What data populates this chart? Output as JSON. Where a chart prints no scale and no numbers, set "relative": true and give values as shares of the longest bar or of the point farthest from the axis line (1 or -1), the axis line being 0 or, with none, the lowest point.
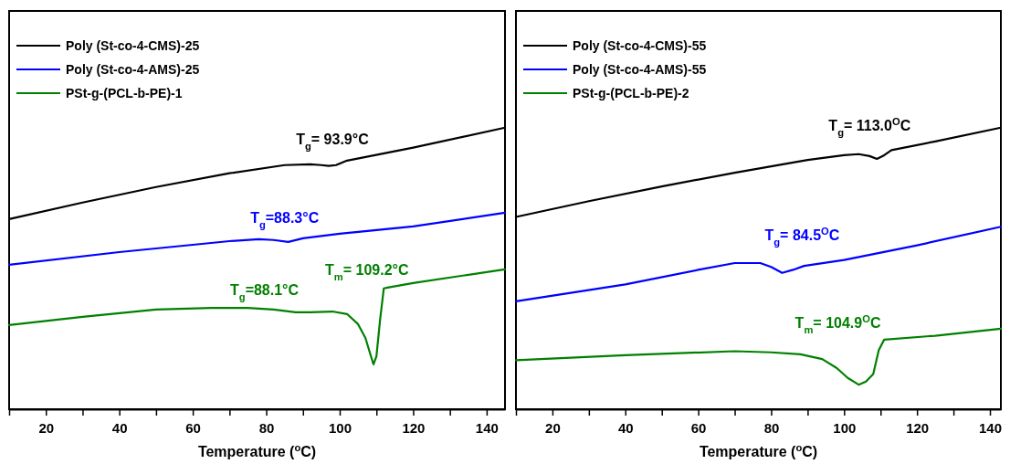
{
  "chart_data": [
    {
      "type": "line",
      "relative": true,
      "xlabel": "Temperature ($^{o}$C)",
      "xlim": [
        10,
        145
      ],
      "xticks": [
        {
          "value": 10,
          "label": null
        },
        20,
        {
          "value": 30,
          "label": null
        },
        40,
        {
          "value": 50,
          "label": null
        },
        60,
        {
          "value": 70,
          "label": null
        },
        80,
        {
          "value": 90,
          "label": null
        },
        100,
        {
          "value": 110,
          "label": null
        },
        120,
        {
          "value": 130,
          "label": null
        },
        140
      ],
      "tick_labels": "x",
      "legend": "top left",
      "grid": false,
      "line_style": "solid",
      "series": [
        {
          "name": "Poly (St-co-4-CMS)-25",
          "color": "#000000",
          "x": [
            10,
            30,
            50,
            70,
            85,
            92,
            95,
            97,
            99,
            102,
            120,
            145
          ],
          "values": [
            0.675,
            0.734,
            0.789,
            0.838,
            0.867,
            0.87,
            0.867,
            0.864,
            0.867,
            0.883,
            0.929,
            1
          ]
        },
        {
          "name": "Poly (St-co-4-AMS)-25",
          "color": "#0000ff",
          "x": [
            10,
            40,
            70,
            78,
            82,
            86,
            90,
            100,
            120,
            145
          ],
          "values": [
            0.513,
            0.558,
            0.597,
            0.604,
            0.601,
            0.594,
            0.607,
            0.623,
            0.649,
            0.698
          ]
        },
        {
          "name": "PSt-g-(PCL-b-PE)-1",
          "color": "#008000",
          "x": [
            10,
            30,
            50,
            65,
            75,
            82,
            88,
            92,
            98,
            102,
            105,
            107,
            108.5,
            109.2,
            110,
            111,
            112,
            113,
            120,
            145
          ],
          "values": [
            0.299,
            0.328,
            0.354,
            0.36,
            0.36,
            0.354,
            0.344,
            0.344,
            0.347,
            0.338,
            0.302,
            0.253,
            0.188,
            0.159,
            0.188,
            0.318,
            0.429,
            0.432,
            0.448,
            0.497
          ]
        }
      ],
      "annotations": [
        "T$_{g}$= 93.9°C",
        "T$_{g}$=88.3°C",
        "T$_{g}$=88.1°C",
        "T$_{m}$= 109.2°C"
      ]
    },
    {
      "type": "line",
      "relative": true,
      "xlabel": "Temperature ($^{o}$C)",
      "xlim": [
        10,
        143
      ],
      "xticks": [
        {
          "value": 10,
          "label": null
        },
        20,
        {
          "value": 30,
          "label": null
        },
        40,
        {
          "value": 50,
          "label": null
        },
        60,
        {
          "value": 70,
          "label": null
        },
        80,
        {
          "value": 90,
          "label": null
        },
        100,
        {
          "value": 110,
          "label": null
        },
        120,
        {
          "value": 130,
          "label": null
        },
        140
      ],
      "tick_labels": "x",
      "legend": "top left",
      "grid": false,
      "line_style": "solid",
      "series": [
        {
          "name": "Poly (St-co-4-CMS)-55",
          "color": "#000000",
          "x": [
            10,
            30,
            50,
            70,
            90,
            100,
            104,
            107,
            109,
            111,
            113,
            125,
            143
          ],
          "values": [
            0.683,
            0.739,
            0.791,
            0.84,
            0.885,
            0.902,
            0.906,
            0.899,
            0.889,
            0.902,
            0.92,
            0.951,
            1
          ]
        },
        {
          "name": "Poly (St-co-4-AMS)-55",
          "color": "#0000ff",
          "x": [
            10,
            40,
            60,
            70,
            77,
            80,
            83,
            86,
            89,
            100,
            120,
            143
          ],
          "values": [
            0.383,
            0.443,
            0.495,
            0.519,
            0.519,
            0.505,
            0.484,
            0.495,
            0.509,
            0.53,
            0.582,
            0.648
          ]
        },
        {
          "name": "PSt-g-(PCL-b-PE)-2",
          "color": "#008000",
          "x": [
            10,
            40,
            70,
            80,
            88,
            94,
            98,
            101,
            104,
            106,
            108,
            109.5,
            111,
            125,
            143
          ],
          "values": [
            0.174,
            0.192,
            0.206,
            0.202,
            0.195,
            0.178,
            0.146,
            0.111,
            0.087,
            0.098,
            0.125,
            0.209,
            0.247,
            0.261,
            0.286
          ]
        }
      ],
      "annotations": [
        "T$_{g}$= 113.0$^{O}$C",
        "T$_{g}$= 84.5$^{O}$C",
        "T$_{m}$= 104.9$^{O}$C"
      ]
    }
  ]
}
